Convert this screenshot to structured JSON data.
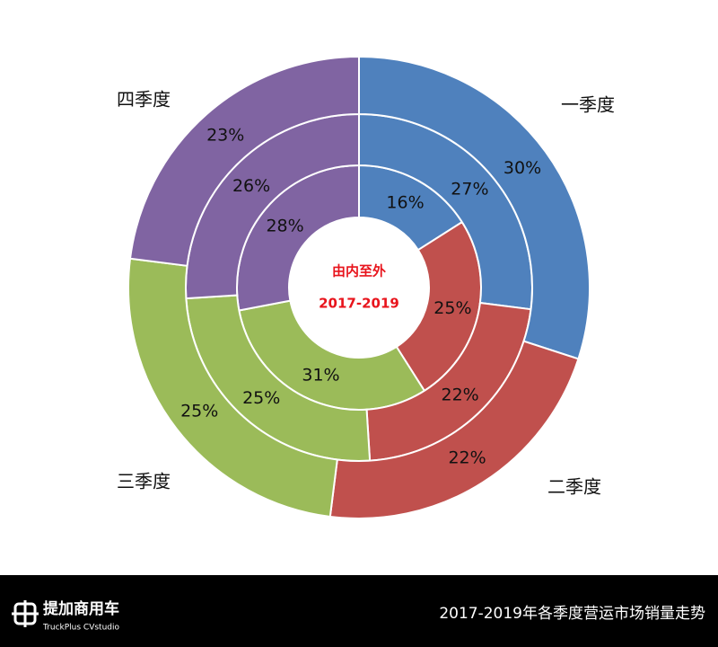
{
  "chart_data": {
    "type": "multi-donut",
    "categories": [
      "一季度",
      "二季度",
      "三季度",
      "四季度"
    ],
    "colors": [
      "#4f81bd",
      "#c0504d",
      "#9bbb59",
      "#8064a2"
    ],
    "series": [
      {
        "values": [
          16,
          25,
          31,
          28
        ],
        "value_labels": [
          "16%",
          "25%",
          "31%",
          "28%"
        ]
      },
      {
        "values": [
          27,
          22,
          25,
          26
        ],
        "value_labels": [
          "27%",
          "22%",
          "25%",
          "26%"
        ]
      },
      {
        "values": [
          30,
          22,
          25,
          23
        ],
        "value_labels": [
          "30%",
          "22%",
          "25%",
          "23%"
        ]
      }
    ],
    "annotations": [
      "由内至外",
      "2017-2019"
    ]
  },
  "footer": {
    "brand": "提加商用车",
    "brand_sub": "TruckPlus CVstudio",
    "caption": "2017-2019年各季度营运市场销量走势"
  }
}
